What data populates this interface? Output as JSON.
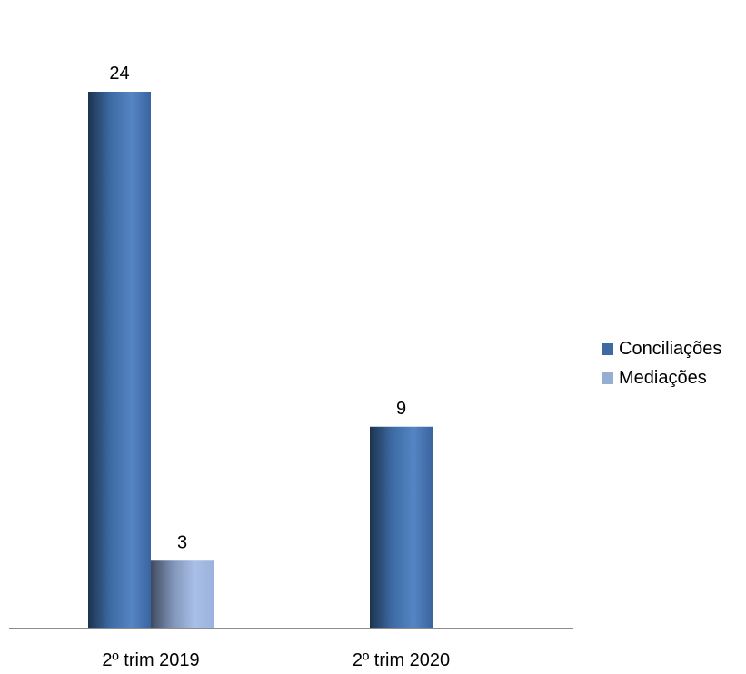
{
  "chart_data": {
    "type": "bar",
    "title": "",
    "xlabel": "",
    "ylabel": "",
    "categories": [
      "2º trim 2019",
      "2º trim 2020"
    ],
    "series": [
      {
        "name": "Conciliações",
        "values": [
          24,
          9
        ],
        "color": "#3d6aa3"
      },
      {
        "name": "Mediações",
        "values": [
          3,
          null
        ],
        "color": "#97aed4"
      }
    ],
    "ylim": [
      0,
      27
    ],
    "grid": false,
    "legend": "right",
    "data_labels": true
  }
}
